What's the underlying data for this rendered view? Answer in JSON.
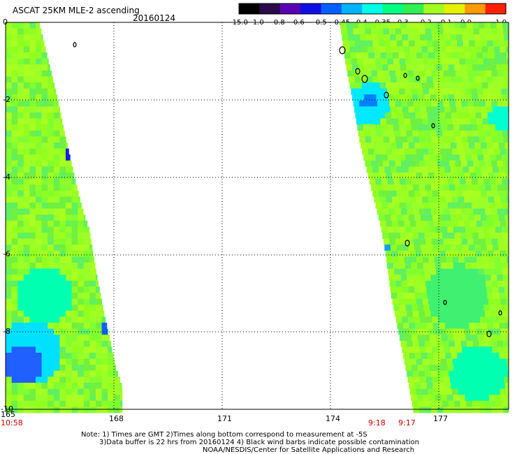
{
  "header": {
    "title": "ASCAT 25KM MLE-2 ascending",
    "date": "20160124"
  },
  "colorbar": {
    "labels": [
      "-15.0",
      "-1.0",
      "-0.8",
      "-0.6",
      "-0.5",
      "-0.45",
      "-0.4",
      "-0.35",
      "-0.3",
      "-0.2",
      "-0.1",
      "0.0",
      "1.0"
    ],
    "colors": [
      "#000000",
      "#2a0a4a",
      "#5a00b4",
      "#1010e6",
      "#0060ff",
      "#00b4ff",
      "#00ffe6",
      "#00ff80",
      "#30f050",
      "#a0ff20",
      "#e6f000",
      "#ff9a00",
      "#ff2000"
    ]
  },
  "map": {
    "lon_range": [
      165,
      179.5
    ],
    "lat_range": [
      0,
      -10
    ],
    "x_tick_labels": [
      "165",
      "168",
      "171",
      "174",
      "177"
    ],
    "y_tick_labels": [
      "0",
      "-2",
      "-4",
      "-6",
      "-8",
      "-10"
    ],
    "time_labels": [
      "10:58",
      "9:18",
      "9:17"
    ]
  },
  "notes": {
    "line1": "Note: 1) Times are GMT 2)Times along bottom correspond to measurement at -5S",
    "line2": "3)Data buffer is 22 hrs from 20160124 4) Black wind barbs indicate possible contamination",
    "line3": "NOAA/NESDIS/Center for Satellite Applications and Research"
  }
}
